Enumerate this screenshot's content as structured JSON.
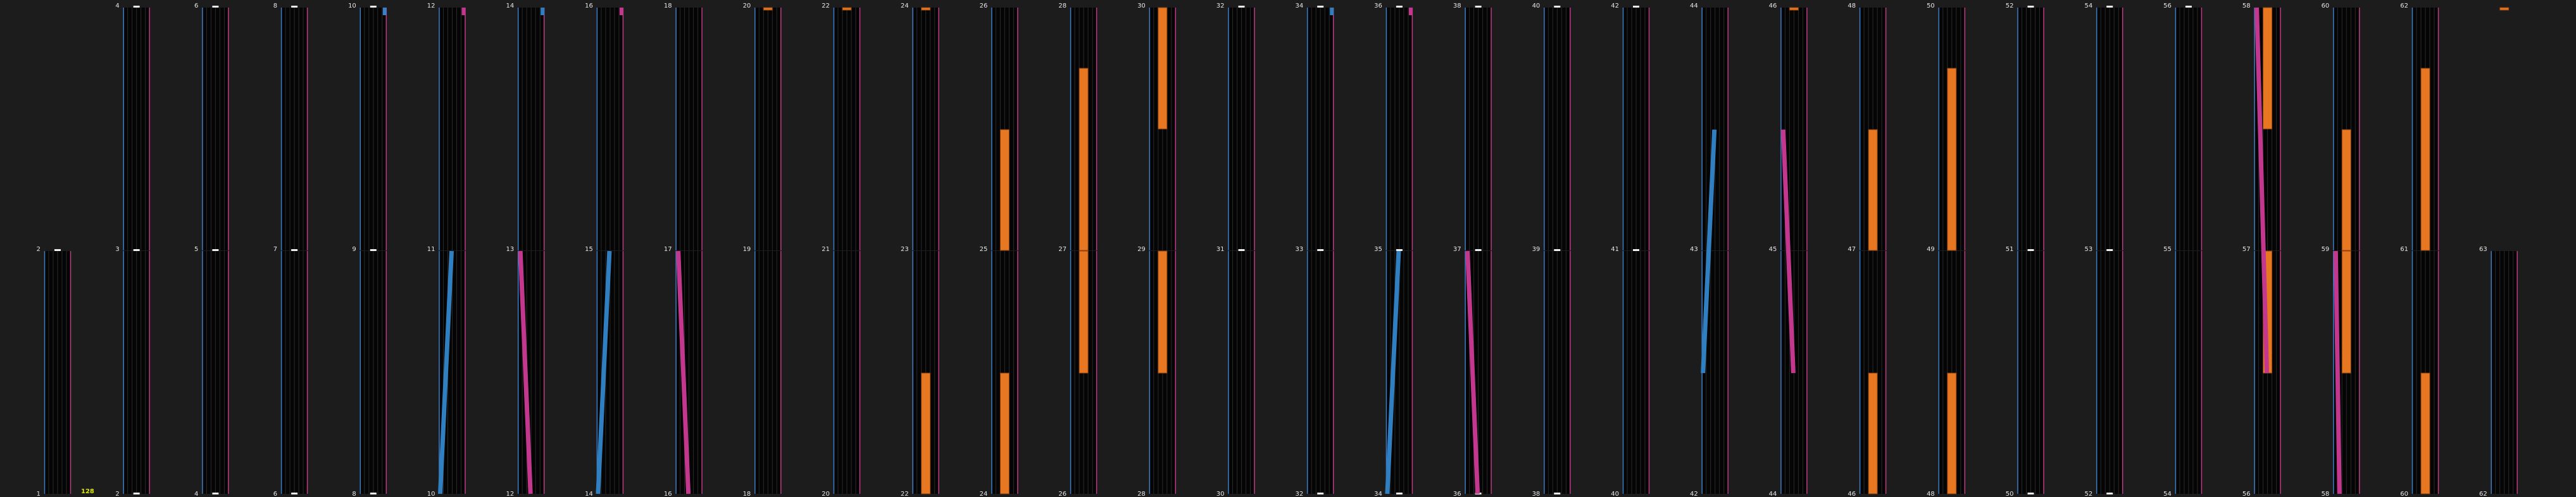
{
  "colors": {
    "background": "#1c1c1c",
    "panel": "#050505",
    "grid": "#2a2a2a",
    "left_edge": "#3d7ec8",
    "right_edge": "#c03a86",
    "orange": "#e87722",
    "blue_stroke": "#2f7fc1",
    "pink_stroke": "#c4378e",
    "label": "#e6e6e6",
    "accent": "#d7e800"
  },
  "accent_text": "128",
  "layers": [
    {
      "name": "bottom",
      "labels": [
        "1",
        "2",
        "4",
        "6",
        "8",
        "10",
        "12",
        "14",
        "16",
        "18",
        "20",
        "22",
        "24",
        "26",
        "28",
        "30",
        "32",
        "34",
        "36",
        "38",
        "40",
        "42",
        "44",
        "46",
        "48",
        "50",
        "52",
        "54",
        "56",
        "58",
        "60",
        "62"
      ]
    },
    {
      "name": "middle",
      "labels": [
        "2",
        "3",
        "5",
        "7",
        "9",
        "11",
        "13",
        "15",
        "17",
        "19",
        "21",
        "23",
        "25",
        "27",
        "29",
        "31",
        "33",
        "35",
        "37",
        "39",
        "41",
        "43",
        "45",
        "47",
        "49",
        "51",
        "53",
        "55",
        "57",
        "59",
        "61",
        "63"
      ]
    },
    {
      "name": "top",
      "labels": [
        "",
        "4",
        "6",
        "8",
        "10",
        "12",
        "14",
        "16",
        "18",
        "20",
        "22",
        "24",
        "26",
        "28",
        "30",
        "32",
        "34",
        "36",
        "38",
        "40",
        "42",
        "44",
        "46",
        "48",
        "50",
        "52",
        "54",
        "56",
        "58",
        "60",
        "62",
        ""
      ]
    }
  ]
}
